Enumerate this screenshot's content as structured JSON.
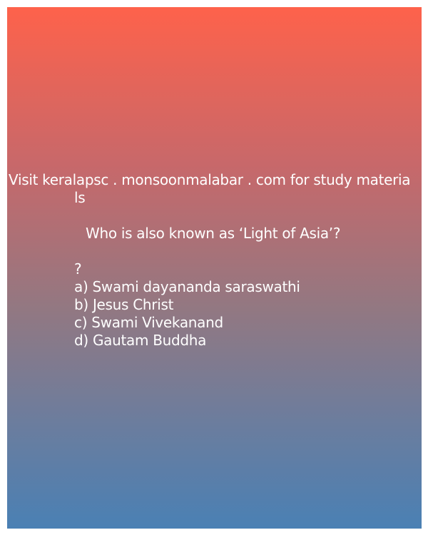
{
  "header": {
    "line1": "Visit keralapsc . monsoonmalabar . com for study materia",
    "line2": "ls"
  },
  "question": {
    "text": "Who is also known as ‘Light of Asia’?",
    "mark": "?"
  },
  "options": [
    "a) Swami dayananda saraswathi",
    "b) Jesus Christ",
    "c) Swami Vivekanand",
    "d) Gautam Buddha"
  ],
  "colors": {
    "gradient_top": "#fe624b",
    "gradient_bottom": "#4a80b4",
    "text": "#ffffff"
  }
}
